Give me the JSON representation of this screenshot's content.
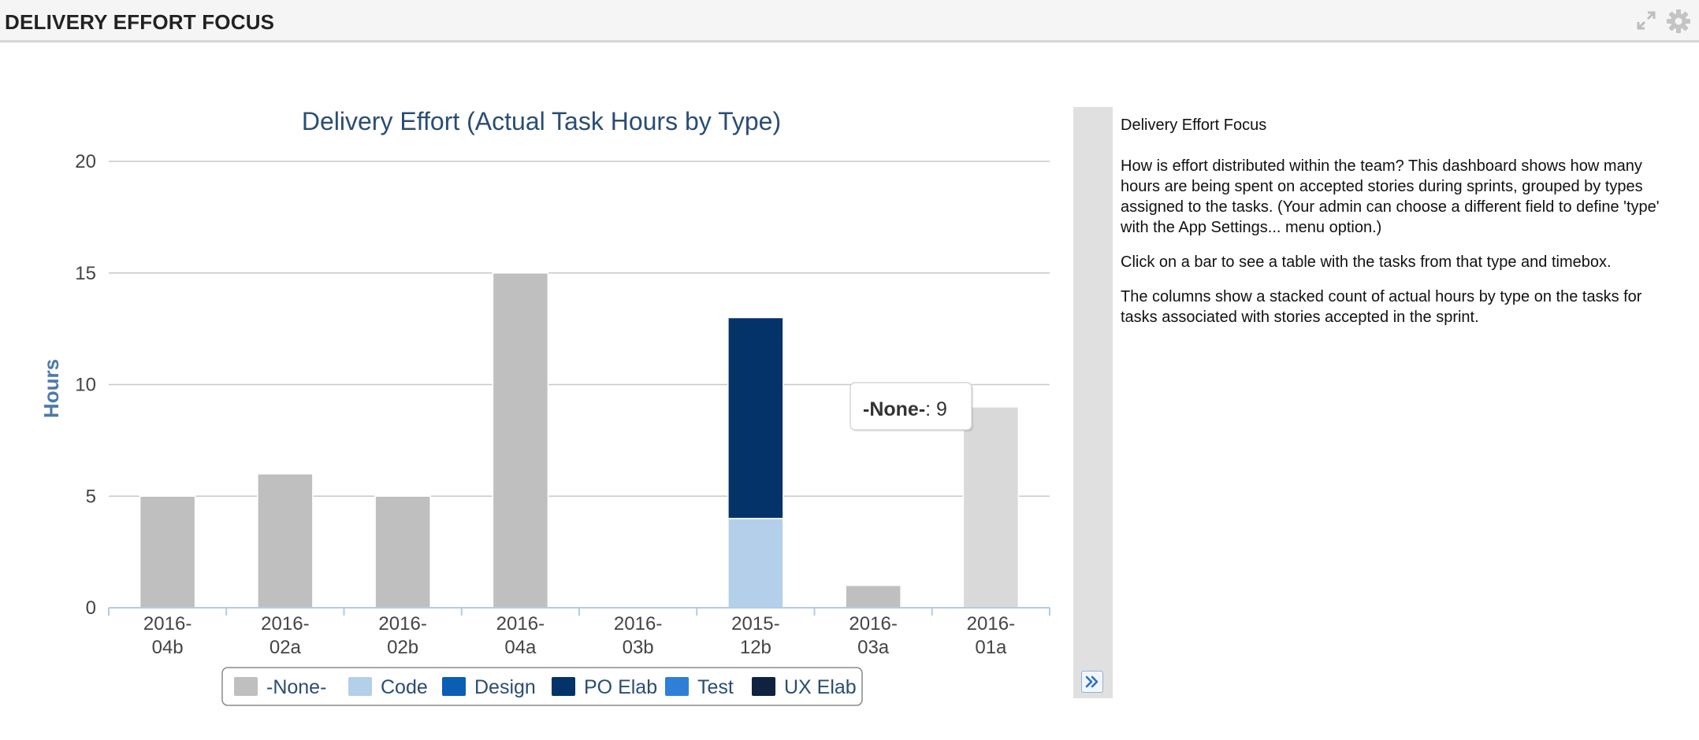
{
  "panel": {
    "title": "DELIVERY EFFORT FOCUS",
    "icons": [
      "expand-icon",
      "gear-icon"
    ]
  },
  "help": {
    "title": "Delivery Effort Focus",
    "paragraphs": [
      "How is effort distributed within the team? This dashboard shows how many hours are being spent on accepted stories during sprints, grouped by types assigned to the tasks. (Your admin can choose a different field to define 'type' with the App Settings... menu option.)",
      "Click on a bar to see a table with the tasks from that type and timebox.",
      "The columns show a stacked count of actual hours by type on the tasks for tasks associated with stories accepted in the sprint."
    ],
    "collapse_icon": "double-chevron-right-icon"
  },
  "tooltip": {
    "series": "-None-",
    "sep": ": ",
    "value": "9"
  },
  "chart_data": {
    "type": "bar",
    "stacked": true,
    "title": "Delivery Effort (Actual Task Hours by Type)",
    "ylabel": "Hours",
    "xlabel": "",
    "ylim": [
      0,
      20
    ],
    "yticks": [
      0,
      5,
      10,
      15,
      20
    ],
    "grid": true,
    "legend_position": "bottom",
    "categories": [
      "2016-04b",
      "2016-02a",
      "2016-02b",
      "2016-04a",
      "2016-03b",
      "2015-12b",
      "2016-03a",
      "2016-01a"
    ],
    "category_lines": [
      [
        "2016-",
        "04b"
      ],
      [
        "2016-",
        "02a"
      ],
      [
        "2016-",
        "02b"
      ],
      [
        "2016-",
        "04a"
      ],
      [
        "2016-",
        "03b"
      ],
      [
        "2015-",
        "12b"
      ],
      [
        "2016-",
        "03a"
      ],
      [
        "2016-",
        "01a"
      ]
    ],
    "highlighted": {
      "series": 0,
      "category": 7,
      "color": "#d9d9d9"
    },
    "series": [
      {
        "name": "-None-",
        "color": "#bfbfbf",
        "values": [
          5,
          6,
          5,
          15,
          0,
          0,
          1,
          9
        ]
      },
      {
        "name": "Code",
        "color": "#b3cfea",
        "values": [
          0,
          0,
          0,
          0,
          0,
          4,
          0,
          0
        ]
      },
      {
        "name": "Design",
        "color": "#0a5fb5",
        "values": [
          0,
          0,
          0,
          0,
          0,
          0,
          0,
          0
        ]
      },
      {
        "name": "PO Elab",
        "color": "#04336a",
        "values": [
          0,
          0,
          0,
          0,
          0,
          9,
          0,
          0
        ]
      },
      {
        "name": "Test",
        "color": "#2f7fd9",
        "values": [
          0,
          0,
          0,
          0,
          0,
          0,
          0,
          0
        ]
      },
      {
        "name": "UX Elab",
        "color": "#0f2340",
        "values": [
          0,
          0,
          0,
          0,
          0,
          0,
          0,
          0
        ]
      }
    ],
    "colors": {
      "title": "#2a4d74",
      "axis_label": "#4e79a8",
      "tick": "#444444",
      "grid": "#c8c8c8",
      "axis": "#b7cbe0"
    }
  }
}
